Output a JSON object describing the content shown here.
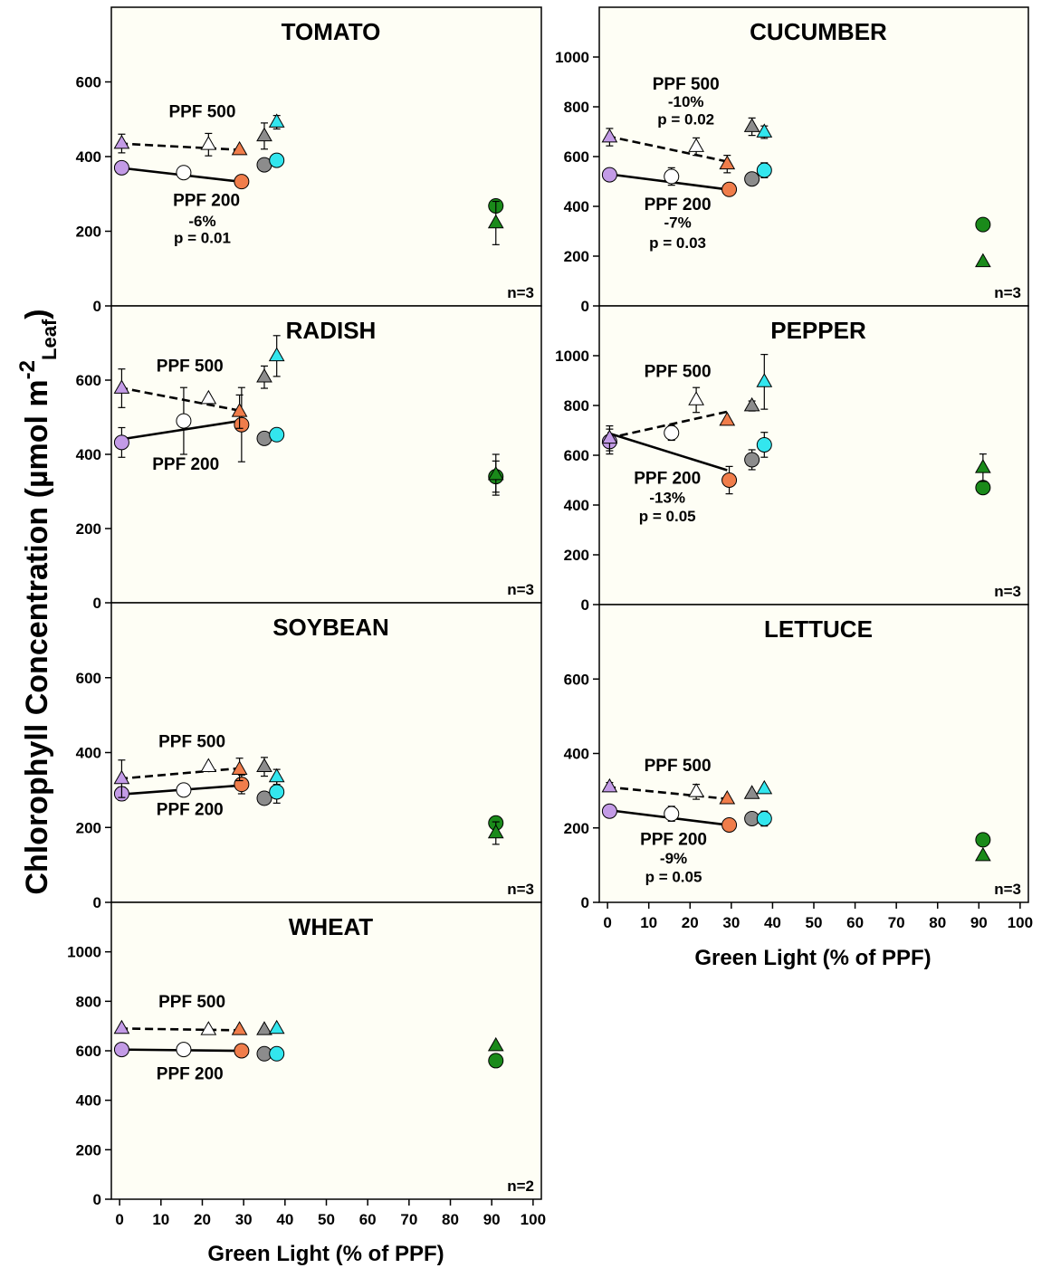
{
  "y_axis_label": {
    "main": "Chlorophyll Concentration (µmol m",
    "sup": "-2",
    "sub": "Leaf",
    "close": ")"
  },
  "x_axis_label": "Green Light (% of PPF)",
  "colors": {
    "violet": "#c39be6",
    "white": "#ffffff",
    "orange": "#f07d4b",
    "gray": "#8c8c8c",
    "cyan": "#33e6ee",
    "green": "#1a8a1a",
    "panel_bg": "#fefef5"
  },
  "chart_data": [
    {
      "type": "scatter",
      "title": "TOMATO",
      "n_label": "n=3",
      "xlim": [
        -2,
        102
      ],
      "ylim": [
        0,
        800
      ],
      "yticks": [
        0,
        200,
        400,
        600
      ],
      "xticks": [],
      "line_200": [
        [
          0,
          370
        ],
        [
          29,
          333
        ]
      ],
      "line_500": [
        [
          0,
          435
        ],
        [
          29,
          418
        ]
      ],
      "points": [
        {
          "x": 0.5,
          "y": 370,
          "shape": "circle",
          "color": "violet"
        },
        {
          "x": 15.5,
          "y": 357,
          "shape": "circle",
          "color": "white"
        },
        {
          "x": 29.5,
          "y": 333,
          "shape": "circle",
          "color": "orange"
        },
        {
          "x": 35,
          "y": 378,
          "shape": "circle",
          "color": "gray"
        },
        {
          "x": 38,
          "y": 390,
          "shape": "circle",
          "color": "cyan"
        },
        {
          "x": 91,
          "y": 268,
          "shape": "circle",
          "color": "green"
        },
        {
          "x": 0.5,
          "y": 435,
          "shape": "triangle",
          "color": "violet",
          "err": 25
        },
        {
          "x": 21.5,
          "y": 432,
          "shape": "triangle",
          "color": "white",
          "err": 30
        },
        {
          "x": 29,
          "y": 418,
          "shape": "triangle",
          "color": "orange"
        },
        {
          "x": 35,
          "y": 455,
          "shape": "triangle",
          "color": "gray",
          "err": 35
        },
        {
          "x": 38,
          "y": 492,
          "shape": "triangle",
          "color": "cyan",
          "err": 18
        },
        {
          "x": 91,
          "y": 222,
          "shape": "triangle",
          "color": "green",
          "err": 58
        }
      ],
      "annotations": [
        {
          "text": "PPF 500",
          "x": 20,
          "y": 505,
          "size": 19
        },
        {
          "text": "PPF 200",
          "x": 21,
          "y": 268,
          "size": 19
        },
        {
          "text": "-6%",
          "x": 20,
          "y": 213,
          "size": 17
        },
        {
          "text": "p = 0.01",
          "x": 20,
          "y": 168,
          "size": 17
        }
      ]
    },
    {
      "type": "scatter",
      "title": "CUCUMBER",
      "n_label": "n=3",
      "xlim": [
        -2,
        102
      ],
      "ylim": [
        0,
        1200
      ],
      "yticks": [
        0,
        200,
        400,
        600,
        800,
        1000
      ],
      "xticks": [],
      "line_200": [
        [
          0,
          530
        ],
        [
          29,
          468
        ]
      ],
      "line_500": [
        [
          0,
          682
        ],
        [
          29,
          580
        ]
      ],
      "points": [
        {
          "x": 0.5,
          "y": 527,
          "shape": "circle",
          "color": "violet"
        },
        {
          "x": 15.5,
          "y": 520,
          "shape": "circle",
          "color": "white",
          "err": 35
        },
        {
          "x": 29.5,
          "y": 468,
          "shape": "circle",
          "color": "orange"
        },
        {
          "x": 35,
          "y": 510,
          "shape": "circle",
          "color": "gray"
        },
        {
          "x": 38,
          "y": 545,
          "shape": "circle",
          "color": "cyan",
          "err": 30
        },
        {
          "x": 91,
          "y": 327,
          "shape": "circle",
          "color": "green"
        },
        {
          "x": 0.5,
          "y": 678,
          "shape": "triangle",
          "color": "violet",
          "err": 35
        },
        {
          "x": 21.5,
          "y": 640,
          "shape": "triangle",
          "color": "white",
          "err": 35
        },
        {
          "x": 29,
          "y": 570,
          "shape": "triangle",
          "color": "orange",
          "err": 35
        },
        {
          "x": 35,
          "y": 720,
          "shape": "triangle",
          "color": "gray",
          "err": 35
        },
        {
          "x": 38,
          "y": 698,
          "shape": "triangle",
          "color": "cyan",
          "err": 25
        },
        {
          "x": 91,
          "y": 177,
          "shape": "triangle",
          "color": "green"
        }
      ],
      "annotations": [
        {
          "text": "PPF 500",
          "x": 19,
          "y": 870,
          "size": 19
        },
        {
          "text": "-10%",
          "x": 19,
          "y": 800,
          "size": 17
        },
        {
          "text": "p = 0.02",
          "x": 19,
          "y": 730,
          "size": 17
        },
        {
          "text": "PPF 200",
          "x": 17,
          "y": 385,
          "size": 19
        },
        {
          "text": "-7%",
          "x": 17,
          "y": 315,
          "size": 17
        },
        {
          "text": "p = 0.03",
          "x": 17,
          "y": 232,
          "size": 17
        }
      ]
    },
    {
      "type": "scatter",
      "title": "RADISH",
      "n_label": "n=3",
      "xlim": [
        -2,
        102
      ],
      "ylim": [
        0,
        800
      ],
      "yticks": [
        0,
        200,
        400,
        600
      ],
      "xticks": [],
      "line_200": [
        [
          0,
          440
        ],
        [
          29,
          490
        ]
      ],
      "line_500": [
        [
          0,
          580
        ],
        [
          29,
          518
        ]
      ],
      "points": [
        {
          "x": 0.5,
          "y": 432,
          "shape": "circle",
          "color": "violet",
          "err": 40
        },
        {
          "x": 15.5,
          "y": 490,
          "shape": "circle",
          "color": "white",
          "err": 90
        },
        {
          "x": 29.5,
          "y": 480,
          "shape": "circle",
          "color": "orange",
          "err": 100
        },
        {
          "x": 35,
          "y": 443,
          "shape": "circle",
          "color": "gray"
        },
        {
          "x": 38,
          "y": 453,
          "shape": "circle",
          "color": "cyan"
        },
        {
          "x": 91,
          "y": 340,
          "shape": "circle",
          "color": "green",
          "err": 42
        },
        {
          "x": 0.5,
          "y": 578,
          "shape": "triangle",
          "color": "violet",
          "err": 52
        },
        {
          "x": 21.5,
          "y": 550,
          "shape": "triangle",
          "color": "white"
        },
        {
          "x": 29,
          "y": 515,
          "shape": "triangle",
          "color": "orange",
          "err": 45
        },
        {
          "x": 35,
          "y": 608,
          "shape": "triangle",
          "color": "gray",
          "err": 30
        },
        {
          "x": 38,
          "y": 665,
          "shape": "triangle",
          "color": "cyan",
          "err": 55
        },
        {
          "x": 91,
          "y": 345,
          "shape": "triangle",
          "color": "green",
          "err": 55
        }
      ],
      "annotations": [
        {
          "text": "PPF 500",
          "x": 17,
          "y": 623,
          "size": 19
        },
        {
          "text": "PPF 200",
          "x": 16,
          "y": 358,
          "size": 19
        }
      ]
    },
    {
      "type": "scatter",
      "title": "PEPPER",
      "n_label": "n=3",
      "xlim": [
        -2,
        102
      ],
      "ylim": [
        0,
        1200
      ],
      "yticks": [
        0,
        200,
        400,
        600,
        800,
        1000
      ],
      "xticks": [],
      "line_200": [
        [
          0,
          690
        ],
        [
          29,
          540
        ]
      ],
      "line_500": [
        [
          0,
          668
        ],
        [
          29,
          775
        ]
      ],
      "points": [
        {
          "x": 0.5,
          "y": 655,
          "shape": "circle",
          "color": "violet",
          "err": 50
        },
        {
          "x": 15.5,
          "y": 690,
          "shape": "circle",
          "color": "white",
          "err": 30
        },
        {
          "x": 29.5,
          "y": 500,
          "shape": "circle",
          "color": "orange",
          "err": 55
        },
        {
          "x": 35,
          "y": 582,
          "shape": "circle",
          "color": "gray",
          "err": 40
        },
        {
          "x": 38,
          "y": 642,
          "shape": "circle",
          "color": "cyan",
          "err": 50
        },
        {
          "x": 91,
          "y": 470,
          "shape": "circle",
          "color": "green"
        },
        {
          "x": 0.5,
          "y": 668,
          "shape": "triangle",
          "color": "violet",
          "err": 50
        },
        {
          "x": 21.5,
          "y": 822,
          "shape": "triangle",
          "color": "white",
          "err": 50
        },
        {
          "x": 29,
          "y": 740,
          "shape": "triangle",
          "color": "orange"
        },
        {
          "x": 35,
          "y": 798,
          "shape": "triangle",
          "color": "gray",
          "err": 20
        },
        {
          "x": 38,
          "y": 895,
          "shape": "triangle",
          "color": "cyan",
          "err": 110
        },
        {
          "x": 91,
          "y": 550,
          "shape": "triangle",
          "color": "green",
          "err": 55
        }
      ],
      "annotations": [
        {
          "text": "PPF 500",
          "x": 17,
          "y": 915,
          "size": 19
        },
        {
          "text": "PPF 200",
          "x": 14.5,
          "y": 485,
          "size": 19
        },
        {
          "text": "-13%",
          "x": 14.5,
          "y": 410,
          "size": 17
        },
        {
          "text": "p = 0.05",
          "x": 14.5,
          "y": 335,
          "size": 17
        }
      ]
    },
    {
      "type": "scatter",
      "title": "SOYBEAN",
      "n_label": "n=3",
      "xlim": [
        -2,
        102
      ],
      "ylim": [
        0,
        800
      ],
      "yticks": [
        0,
        200,
        400,
        600
      ],
      "xticks": [],
      "line_200": [
        [
          0,
          288
        ],
        [
          29,
          312
        ]
      ],
      "line_500": [
        [
          0,
          330
        ],
        [
          29,
          358
        ]
      ],
      "points": [
        {
          "x": 0.5,
          "y": 290,
          "shape": "circle",
          "color": "violet",
          "err": 18
        },
        {
          "x": 15.5,
          "y": 300,
          "shape": "circle",
          "color": "white"
        },
        {
          "x": 29.5,
          "y": 315,
          "shape": "circle",
          "color": "orange",
          "err": 25
        },
        {
          "x": 35,
          "y": 278,
          "shape": "circle",
          "color": "gray"
        },
        {
          "x": 38,
          "y": 295,
          "shape": "circle",
          "color": "cyan",
          "err": 30
        },
        {
          "x": 91,
          "y": 212,
          "shape": "circle",
          "color": "green"
        },
        {
          "x": 0.5,
          "y": 330,
          "shape": "triangle",
          "color": "violet",
          "err": 50
        },
        {
          "x": 21.5,
          "y": 362,
          "shape": "triangle",
          "color": "white"
        },
        {
          "x": 29,
          "y": 355,
          "shape": "triangle",
          "color": "orange",
          "err": 30
        },
        {
          "x": 35,
          "y": 362,
          "shape": "triangle",
          "color": "gray",
          "err": 25
        },
        {
          "x": 38,
          "y": 335,
          "shape": "triangle",
          "color": "cyan",
          "err": 20
        },
        {
          "x": 91,
          "y": 185,
          "shape": "triangle",
          "color": "green",
          "err": 30
        }
      ],
      "annotations": [
        {
          "text": "PPF 500",
          "x": 17.5,
          "y": 415,
          "size": 19
        },
        {
          "text": "PPF 200",
          "x": 17,
          "y": 233,
          "size": 19
        }
      ]
    },
    {
      "type": "scatter",
      "title": "LETTUCE",
      "n_label": "n=3",
      "xlim": [
        -2,
        102
      ],
      "ylim": [
        0,
        800
      ],
      "yticks": [
        0,
        200,
        400,
        600
      ],
      "xticks": [
        0,
        10,
        20,
        30,
        40,
        50,
        60,
        70,
        80,
        90,
        100
      ],
      "line_200": [
        [
          0,
          248
        ],
        [
          29,
          208
        ]
      ],
      "line_500": [
        [
          0,
          310
        ],
        [
          29,
          278
        ]
      ],
      "points": [
        {
          "x": 0.5,
          "y": 245,
          "shape": "circle",
          "color": "violet"
        },
        {
          "x": 15.5,
          "y": 238,
          "shape": "circle",
          "color": "white",
          "err": 20
        },
        {
          "x": 29.5,
          "y": 208,
          "shape": "circle",
          "color": "orange"
        },
        {
          "x": 35,
          "y": 225,
          "shape": "circle",
          "color": "gray"
        },
        {
          "x": 38,
          "y": 225,
          "shape": "circle",
          "color": "cyan",
          "err": 20
        },
        {
          "x": 91,
          "y": 168,
          "shape": "circle",
          "color": "green"
        },
        {
          "x": 0.5,
          "y": 310,
          "shape": "triangle",
          "color": "violet",
          "err": 12
        },
        {
          "x": 21.5,
          "y": 297,
          "shape": "triangle",
          "color": "white",
          "err": 20
        },
        {
          "x": 29,
          "y": 278,
          "shape": "triangle",
          "color": "orange"
        },
        {
          "x": 35,
          "y": 292,
          "shape": "triangle",
          "color": "gray"
        },
        {
          "x": 38,
          "y": 305,
          "shape": "triangle",
          "color": "cyan"
        },
        {
          "x": 91,
          "y": 125,
          "shape": "triangle",
          "color": "green"
        }
      ],
      "annotations": [
        {
          "text": "PPF 500",
          "x": 17,
          "y": 352,
          "size": 19
        },
        {
          "text": "PPF 200",
          "x": 16,
          "y": 155,
          "size": 19
        },
        {
          "text": "-9%",
          "x": 16,
          "y": 105,
          "size": 17
        },
        {
          "text": "p = 0.05",
          "x": 16,
          "y": 55,
          "size": 17
        }
      ]
    },
    {
      "type": "scatter",
      "title": "WHEAT",
      "n_label": "n=2",
      "xlim": [
        -2,
        102
      ],
      "ylim": [
        0,
        1200
      ],
      "yticks": [
        0,
        200,
        400,
        600,
        800,
        1000
      ],
      "xticks": [
        0,
        10,
        20,
        30,
        40,
        50,
        60,
        70,
        80,
        90,
        100
      ],
      "line_200": [
        [
          0,
          605
        ],
        [
          29,
          600
        ]
      ],
      "line_500": [
        [
          0,
          690
        ],
        [
          29,
          683
        ]
      ],
      "points": [
        {
          "x": 0.5,
          "y": 605,
          "shape": "circle",
          "color": "violet"
        },
        {
          "x": 15.5,
          "y": 605,
          "shape": "circle",
          "color": "white"
        },
        {
          "x": 29.5,
          "y": 600,
          "shape": "circle",
          "color": "orange"
        },
        {
          "x": 35,
          "y": 588,
          "shape": "circle",
          "color": "gray"
        },
        {
          "x": 38,
          "y": 588,
          "shape": "circle",
          "color": "cyan"
        },
        {
          "x": 91,
          "y": 560,
          "shape": "circle",
          "color": "green"
        },
        {
          "x": 0.5,
          "y": 690,
          "shape": "triangle",
          "color": "violet"
        },
        {
          "x": 21.5,
          "y": 685,
          "shape": "triangle",
          "color": "white"
        },
        {
          "x": 29,
          "y": 685,
          "shape": "triangle",
          "color": "orange"
        },
        {
          "x": 35,
          "y": 685,
          "shape": "triangle",
          "color": "gray"
        },
        {
          "x": 38,
          "y": 690,
          "shape": "triangle",
          "color": "cyan"
        },
        {
          "x": 91,
          "y": 620,
          "shape": "triangle",
          "color": "green"
        }
      ],
      "annotations": [
        {
          "text": "PPF 500",
          "x": 17.5,
          "y": 775,
          "size": 19
        },
        {
          "text": "PPF 200",
          "x": 17,
          "y": 485,
          "size": 19
        }
      ]
    }
  ]
}
